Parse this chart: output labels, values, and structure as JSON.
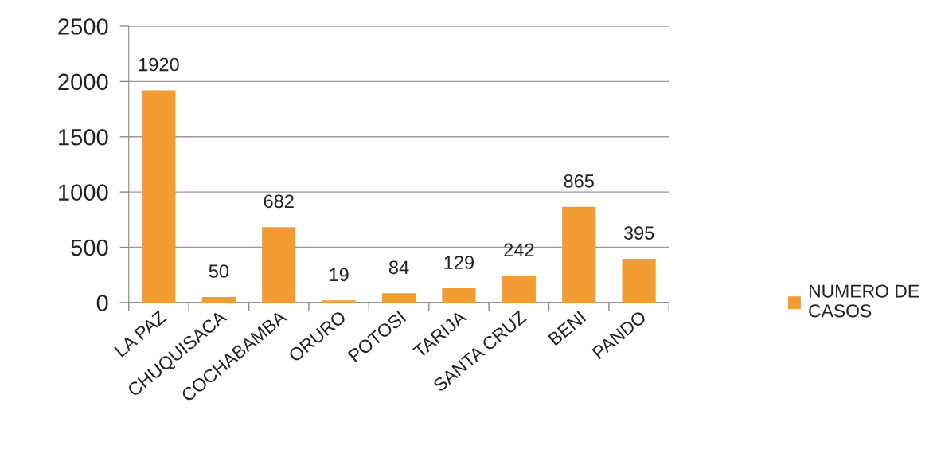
{
  "chart_data": {
    "type": "bar",
    "categories": [
      "LA PAZ",
      "CHUQUISACA",
      "COCHABAMBA",
      "ORURO",
      "POTOSI",
      "TARIJA",
      "SANTA CRUZ",
      "BENI",
      "PANDO"
    ],
    "series": [
      {
        "name": "NUMERO DE CASOS",
        "color": "#f39c33",
        "values": [
          1920,
          50,
          682,
          19,
          84,
          129,
          242,
          865,
          395
        ]
      }
    ],
    "ylim": [
      0,
      2500
    ],
    "yticks": [
      0,
      500,
      1000,
      1500,
      2000,
      2500
    ],
    "grid": "y",
    "legend": "right",
    "data_labels": true
  }
}
